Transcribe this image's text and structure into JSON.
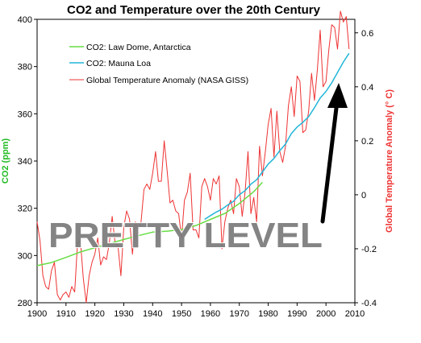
{
  "chart_data": {
    "type": "line",
    "title": "CO2 and Temperature over the 20th Century",
    "xlabel": "",
    "ylabel_left": "CO2 (ppm)",
    "ylabel_right": "Global Temperature Anomaly (° C)",
    "xlim": [
      1900,
      2010
    ],
    "ylim_left": [
      280,
      400
    ],
    "ylim_right": [
      -0.4,
      0.65
    ],
    "x_ticks": [
      "1900",
      "1910",
      "1920",
      "1930",
      "1940",
      "1950",
      "1960",
      "1970",
      "1980",
      "1990",
      "2000",
      "2010"
    ],
    "y_left_ticks": [
      "280",
      "300",
      "320",
      "340",
      "360",
      "380",
      "400"
    ],
    "y_right_ticks": [
      "-0.4",
      "-0.2",
      "0",
      "0.2",
      "0.4",
      "0.6"
    ],
    "grid": false,
    "legend_position": "top-left",
    "annotation_text": "PRETTY LEVEL",
    "colors": {
      "law_dome": "#66dd44",
      "mauna_loa": "#22b6d8",
      "temperature": "#ee3333",
      "left_axis_label": "#22bb22",
      "right_axis_label": "#ee3333",
      "arrow": "#000000"
    },
    "series": [
      {
        "name": "CO2: Law Dome, Antarctica",
        "axis": "left",
        "x": [
          1900,
          1905,
          1910,
          1915,
          1920,
          1925,
          1930,
          1935,
          1940,
          1945,
          1950,
          1955,
          1960,
          1965,
          1970,
          1975,
          1978
        ],
        "values": [
          295.7,
          297.0,
          299.2,
          301.5,
          303.3,
          305.0,
          306.8,
          308.4,
          309.9,
          310.3,
          311.0,
          312.7,
          315.3,
          317.8,
          322.0,
          327.0,
          331.0
        ]
      },
      {
        "name": "CO2: Mauna Loa",
        "axis": "right_none",
        "x": [
          1958,
          1960,
          1962,
          1964,
          1966,
          1968,
          1970,
          1972,
          1974,
          1976,
          1978,
          1980,
          1982,
          1984,
          1986,
          1988,
          1990,
          1992,
          1994,
          1996,
          1998,
          2000,
          2002,
          2004,
          2006,
          2008
        ],
        "values": [
          315.3,
          316.9,
          318.4,
          319.6,
          321.4,
          323.0,
          325.7,
          327.5,
          330.2,
          332.1,
          335.4,
          338.7,
          341.1,
          344.4,
          347.2,
          351.6,
          354.4,
          356.4,
          358.8,
          362.6,
          366.7,
          369.5,
          373.1,
          377.5,
          381.9,
          385.6
        ]
      },
      {
        "name": "Global Temperature Anomaly (NASA GISS)",
        "axis": "right",
        "x": [
          1900,
          1901,
          1902,
          1903,
          1904,
          1905,
          1906,
          1907,
          1908,
          1909,
          1910,
          1911,
          1912,
          1913,
          1914,
          1915,
          1916,
          1917,
          1918,
          1919,
          1920,
          1921,
          1922,
          1923,
          1924,
          1925,
          1926,
          1927,
          1928,
          1929,
          1930,
          1931,
          1932,
          1933,
          1934,
          1935,
          1936,
          1937,
          1938,
          1939,
          1940,
          1941,
          1942,
          1943,
          1944,
          1945,
          1946,
          1947,
          1948,
          1949,
          1950,
          1951,
          1952,
          1953,
          1954,
          1955,
          1956,
          1957,
          1958,
          1959,
          1960,
          1961,
          1962,
          1963,
          1964,
          1965,
          1966,
          1967,
          1968,
          1969,
          1970,
          1971,
          1972,
          1973,
          1974,
          1975,
          1976,
          1977,
          1978,
          1979,
          1980,
          1981,
          1982,
          1983,
          1984,
          1985,
          1986,
          1987,
          1988,
          1989,
          1990,
          1991,
          1992,
          1993,
          1994,
          1995,
          1996,
          1997,
          1998,
          1999,
          2000,
          2001,
          2002,
          2003,
          2004,
          2005,
          2006,
          2007,
          2008
        ],
        "values": [
          -0.1,
          -0.17,
          -0.3,
          -0.34,
          -0.35,
          -0.28,
          -0.25,
          -0.37,
          -0.39,
          -0.37,
          -0.36,
          -0.38,
          -0.34,
          -0.36,
          -0.18,
          -0.17,
          -0.31,
          -0.4,
          -0.3,
          -0.25,
          -0.22,
          -0.16,
          -0.26,
          -0.23,
          -0.24,
          -0.18,
          -0.08,
          -0.18,
          -0.19,
          -0.3,
          -0.12,
          -0.06,
          -0.09,
          -0.22,
          -0.1,
          -0.13,
          -0.1,
          0.02,
          0.04,
          0.02,
          0.08,
          0.16,
          0.05,
          0.05,
          0.2,
          0.09,
          -0.03,
          -0.02,
          -0.06,
          -0.07,
          -0.16,
          -0.02,
          0.01,
          0.08,
          -0.13,
          -0.13,
          -0.16,
          0.03,
          0.06,
          0.03,
          -0.02,
          0.06,
          0.04,
          0.07,
          -0.2,
          -0.1,
          -0.05,
          -0.02,
          -0.07,
          0.06,
          0.03,
          -0.08,
          0.01,
          0.16,
          -0.07,
          -0.01,
          -0.1,
          0.18,
          0.07,
          0.16,
          0.26,
          0.32,
          0.14,
          0.31,
          0.16,
          0.12,
          0.18,
          0.33,
          0.4,
          0.29,
          0.44,
          0.42,
          0.23,
          0.24,
          0.31,
          0.45,
          0.35,
          0.46,
          0.61,
          0.4,
          0.42,
          0.54,
          0.63,
          0.62,
          0.54,
          0.68,
          0.64,
          0.66,
          0.54
        ]
      }
    ]
  }
}
